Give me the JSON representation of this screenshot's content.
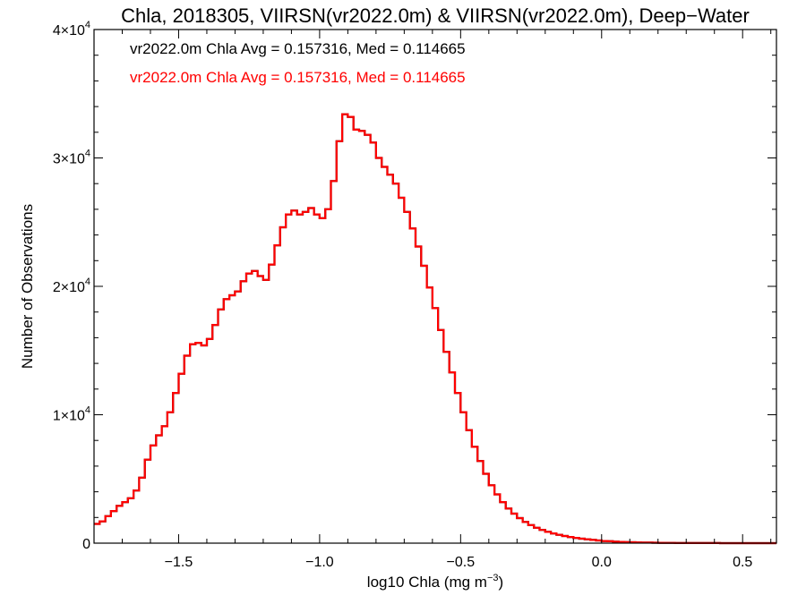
{
  "chart_data": {
    "type": "histogram-step",
    "title": "Chla, 2018305, VIIRSN(vr2022.0m) & VIIRSN(vr2022.0m), Deep−Water",
    "xlabel": "log10 Chla (mg m",
    "xlabel_sup": "−3",
    "xlabel_close": ")",
    "ylabel": "Number of Observations",
    "xlim": [
      -1.8,
      0.62
    ],
    "ylim": [
      0,
      40000
    ],
    "x_ticks": [
      {
        "value": -1.5,
        "label": "−1.5"
      },
      {
        "value": -1.0,
        "label": "−1.0"
      },
      {
        "value": -0.5,
        "label": "−0.5"
      },
      {
        "value": 0.0,
        "label": "0.0"
      },
      {
        "value": 0.5,
        "label": "0.5"
      }
    ],
    "y_ticks": [
      {
        "value": 0,
        "label": "0",
        "sup": ""
      },
      {
        "value": 10000,
        "label": "1×10",
        "sup": "4"
      },
      {
        "value": 20000,
        "label": "2×10",
        "sup": "4"
      },
      {
        "value": 30000,
        "label": "3×10",
        "sup": "4"
      },
      {
        "value": 40000,
        "label": "4×10",
        "sup": "4"
      }
    ],
    "annotations": [
      {
        "text": "vr2022.0m Chla Avg = 0.157316, Med = 0.114665",
        "color": "#000000"
      },
      {
        "text": "vr2022.0m Chla Avg = 0.157316, Med = 0.114665",
        "color": "#ff0000"
      }
    ],
    "series": [
      {
        "color": "#ff0000",
        "bin_width": 0.02,
        "points": [
          [
            -1.8,
            1500
          ],
          [
            -1.78,
            1700
          ],
          [
            -1.76,
            2100
          ],
          [
            -1.74,
            2500
          ],
          [
            -1.72,
            2900
          ],
          [
            -1.7,
            3200
          ],
          [
            -1.68,
            3500
          ],
          [
            -1.66,
            4100
          ],
          [
            -1.64,
            5100
          ],
          [
            -1.62,
            6500
          ],
          [
            -1.6,
            7600
          ],
          [
            -1.58,
            8400
          ],
          [
            -1.56,
            9100
          ],
          [
            -1.54,
            10200
          ],
          [
            -1.52,
            11700
          ],
          [
            -1.5,
            13200
          ],
          [
            -1.48,
            14600
          ],
          [
            -1.46,
            15500
          ],
          [
            -1.44,
            15600
          ],
          [
            -1.42,
            15400
          ],
          [
            -1.4,
            15900
          ],
          [
            -1.38,
            17000
          ],
          [
            -1.36,
            18200
          ],
          [
            -1.34,
            19000
          ],
          [
            -1.32,
            19300
          ],
          [
            -1.3,
            19600
          ],
          [
            -1.28,
            20400
          ],
          [
            -1.26,
            21000
          ],
          [
            -1.24,
            21200
          ],
          [
            -1.22,
            20800
          ],
          [
            -1.2,
            20500
          ],
          [
            -1.18,
            21700
          ],
          [
            -1.16,
            23200
          ],
          [
            -1.14,
            24600
          ],
          [
            -1.12,
            25600
          ],
          [
            -1.1,
            25900
          ],
          [
            -1.08,
            25600
          ],
          [
            -1.06,
            25800
          ],
          [
            -1.04,
            26100
          ],
          [
            -1.02,
            25600
          ],
          [
            -1.0,
            25300
          ],
          [
            -0.98,
            26000
          ],
          [
            -0.96,
            28200
          ],
          [
            -0.94,
            31300
          ],
          [
            -0.92,
            33400
          ],
          [
            -0.9,
            33200
          ],
          [
            -0.88,
            32200
          ],
          [
            -0.86,
            32100
          ],
          [
            -0.84,
            31800
          ],
          [
            -0.82,
            31200
          ],
          [
            -0.8,
            30000
          ],
          [
            -0.78,
            29300
          ],
          [
            -0.76,
            28700
          ],
          [
            -0.74,
            28000
          ],
          [
            -0.72,
            26900
          ],
          [
            -0.7,
            25800
          ],
          [
            -0.68,
            24500
          ],
          [
            -0.66,
            23100
          ],
          [
            -0.64,
            21600
          ],
          [
            -0.62,
            19900
          ],
          [
            -0.6,
            18300
          ],
          [
            -0.58,
            16600
          ],
          [
            -0.56,
            14900
          ],
          [
            -0.54,
            13300
          ],
          [
            -0.52,
            11700
          ],
          [
            -0.5,
            10200
          ],
          [
            -0.48,
            8800
          ],
          [
            -0.46,
            7500
          ],
          [
            -0.44,
            6400
          ],
          [
            -0.42,
            5400
          ],
          [
            -0.4,
            4500
          ],
          [
            -0.38,
            3800
          ],
          [
            -0.36,
            3200
          ],
          [
            -0.34,
            2700
          ],
          [
            -0.32,
            2300
          ],
          [
            -0.3,
            1950
          ],
          [
            -0.28,
            1650
          ],
          [
            -0.26,
            1400
          ],
          [
            -0.24,
            1200
          ],
          [
            -0.22,
            1030
          ],
          [
            -0.2,
            880
          ],
          [
            -0.18,
            760
          ],
          [
            -0.16,
            650
          ],
          [
            -0.14,
            560
          ],
          [
            -0.12,
            480
          ],
          [
            -0.1,
            410
          ],
          [
            -0.08,
            350
          ],
          [
            -0.06,
            300
          ],
          [
            -0.04,
            250
          ],
          [
            -0.02,
            210
          ],
          [
            0.0,
            170
          ],
          [
            0.02,
            145
          ],
          [
            0.04,
            120
          ],
          [
            0.06,
            100
          ],
          [
            0.08,
            85
          ],
          [
            0.1,
            70
          ],
          [
            0.12,
            58
          ],
          [
            0.14,
            48
          ],
          [
            0.16,
            40
          ],
          [
            0.18,
            33
          ],
          [
            0.2,
            27
          ],
          [
            0.22,
            22
          ],
          [
            0.24,
            18
          ],
          [
            0.26,
            15
          ],
          [
            0.28,
            12
          ],
          [
            0.3,
            10
          ],
          [
            0.32,
            8
          ],
          [
            0.34,
            7
          ],
          [
            0.36,
            6
          ],
          [
            0.38,
            5
          ],
          [
            0.4,
            4
          ],
          [
            0.42,
            3
          ],
          [
            0.44,
            3
          ],
          [
            0.46,
            2
          ],
          [
            0.48,
            2
          ],
          [
            0.5,
            2
          ],
          [
            0.52,
            1
          ],
          [
            0.54,
            1
          ],
          [
            0.56,
            1
          ],
          [
            0.58,
            1
          ],
          [
            0.6,
            0
          ]
        ]
      },
      {
        "color": "#000000",
        "overlay_of": 0
      }
    ]
  }
}
